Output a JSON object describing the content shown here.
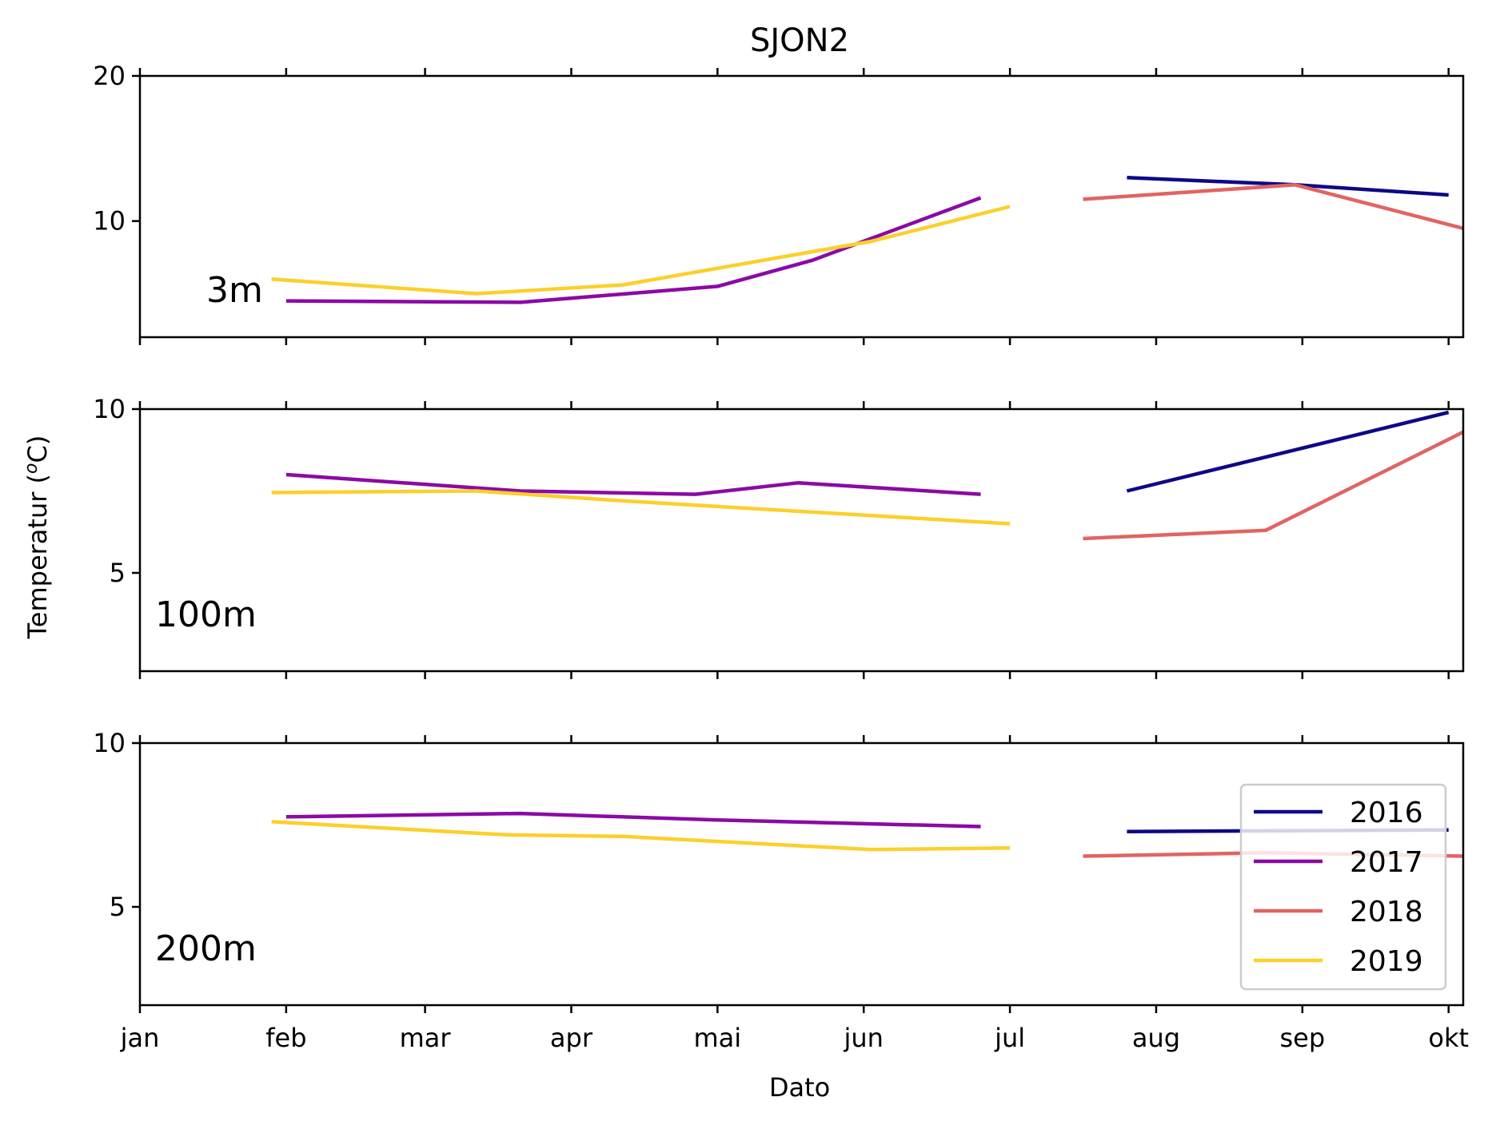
{
  "chart_data": {
    "type": "line",
    "title": "SJON2",
    "xlabel": "Dato",
    "ylabel_prefix": "Temperatur (",
    "ylabel_sup": "o",
    "ylabel_suffix": "C)",
    "x_unit": "month index (0 = 1 jan)",
    "x_range": [
      0,
      9.05
    ],
    "x_ticks": [
      {
        "label": "jan",
        "value": 0
      },
      {
        "label": "feb",
        "value": 1
      },
      {
        "label": "mar",
        "value": 1.95
      },
      {
        "label": "apr",
        "value": 2.95
      },
      {
        "label": "mai",
        "value": 3.95
      },
      {
        "label": "jun",
        "value": 4.95
      },
      {
        "label": "jul",
        "value": 5.95
      },
      {
        "label": "aug",
        "value": 6.95
      },
      {
        "label": "sep",
        "value": 7.95
      },
      {
        "label": "okt",
        "value": 8.95
      }
    ],
    "colors": {
      "2016": "#0d0887",
      "2017": "#8b0aa5",
      "2018": "#e16462",
      "2019": "#fccf2c"
    },
    "legend": {
      "position": "lower-right",
      "entries": [
        "2016",
        "2017",
        "2018",
        "2019"
      ]
    },
    "panels": [
      {
        "label": "3m",
        "ylim": [
          2,
          20
        ],
        "yticks": [
          10,
          20
        ],
        "series": [
          {
            "name": "2016",
            "x": [
              6.75,
              7.9,
              8.95
            ],
            "y": [
              13.0,
              12.5,
              11.8
            ]
          },
          {
            "name": "2017",
            "x": [
              1.0,
              2.6,
              3.95,
              4.6,
              5.75
            ],
            "y": [
              4.5,
              4.4,
              5.5,
              7.3,
              11.6
            ]
          },
          {
            "name": "2018",
            "x": [
              6.45,
              7.9,
              9.05
            ],
            "y": [
              11.5,
              12.5,
              9.5
            ]
          },
          {
            "name": "2019",
            "x": [
              0.9,
              2.3,
              3.3,
              5.0,
              5.95
            ],
            "y": [
              6.0,
              5.0,
              5.6,
              8.6,
              11.0
            ]
          }
        ]
      },
      {
        "label": "100m",
        "ylim": [
          2,
          10
        ],
        "yticks": [
          5,
          10
        ],
        "series": [
          {
            "name": "2016",
            "x": [
              6.75,
              8.95
            ],
            "y": [
              7.5,
              9.9
            ]
          },
          {
            "name": "2017",
            "x": [
              1.0,
              2.6,
              3.8,
              4.5,
              5.75
            ],
            "y": [
              8.0,
              7.5,
              7.4,
              7.75,
              7.4
            ]
          },
          {
            "name": "2018",
            "x": [
              6.45,
              7.7,
              9.05
            ],
            "y": [
              6.05,
              6.3,
              9.3
            ]
          },
          {
            "name": "2019",
            "x": [
              0.9,
              2.3,
              3.3,
              5.0,
              5.95
            ],
            "y": [
              7.45,
              7.5,
              7.2,
              6.75,
              6.5
            ]
          }
        ]
      },
      {
        "label": "200m",
        "ylim": [
          2,
          10
        ],
        "yticks": [
          5,
          10
        ],
        "series": [
          {
            "name": "2016",
            "x": [
              6.75,
              8.95
            ],
            "y": [
              7.3,
              7.35
            ]
          },
          {
            "name": "2017",
            "x": [
              1.0,
              2.6,
              3.95,
              5.75
            ],
            "y": [
              7.75,
              7.85,
              7.65,
              7.45
            ]
          },
          {
            "name": "2018",
            "x": [
              6.45,
              7.7,
              9.05
            ],
            "y": [
              6.55,
              6.65,
              6.55
            ]
          },
          {
            "name": "2019",
            "x": [
              0.9,
              2.5,
              3.3,
              5.0,
              5.95
            ],
            "y": [
              7.6,
              7.2,
              7.15,
              6.75,
              6.8
            ]
          }
        ]
      }
    ]
  }
}
